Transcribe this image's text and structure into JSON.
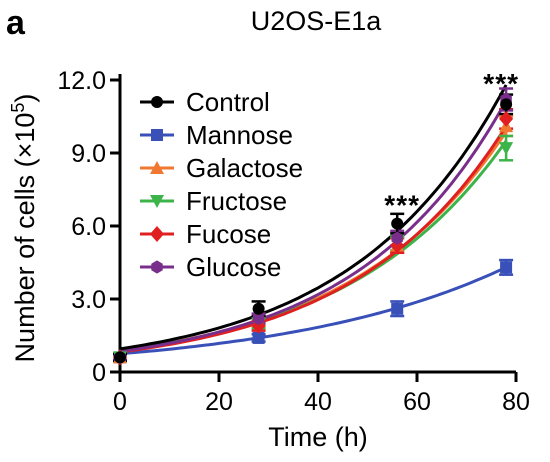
{
  "panel_label": "a",
  "chart_data": {
    "type": "line",
    "title": "U2OS-E1a",
    "xlabel": "Time (h)",
    "ylabel": "Number of cells (×10",
    "ylabel_sup": "5",
    "ylabel_close": ")",
    "xlim": [
      0,
      80
    ],
    "ylim": [
      0,
      12
    ],
    "xticks": [
      0,
      20,
      40,
      60,
      80
    ],
    "yticks": [
      0,
      3,
      6,
      9,
      12
    ],
    "xtick_labels": [
      "0",
      "20",
      "40",
      "60",
      "80"
    ],
    "ytick_labels": [
      "0",
      "3.0",
      "6.0",
      "9.0",
      "12.0"
    ],
    "grid": false,
    "legend_position": "top-left",
    "x": [
      0,
      28,
      56,
      78
    ],
    "series": [
      {
        "name": "Control",
        "color": "#000000",
        "marker": "circle",
        "values": [
          0.6,
          2.6,
          6.1,
          11.0
        ],
        "errors": [
          0.15,
          0.3,
          0.4,
          0.4
        ],
        "fit": [
          0.95,
          0.0323
        ]
      },
      {
        "name": "Mannose",
        "color": "#3850b8",
        "marker": "square",
        "values": [
          0.6,
          1.4,
          2.6,
          4.3
        ],
        "errors": [
          0.1,
          0.15,
          0.3,
          0.3
        ],
        "fit": [
          0.75,
          0.0224
        ]
      },
      {
        "name": "Galactose",
        "color": "#f07830",
        "marker": "triangle-up",
        "values": [
          0.6,
          2.1,
          5.2,
          10.1
        ],
        "errors": [
          0.1,
          0.2,
          0.3,
          0.4
        ],
        "fit": [
          0.88,
          0.031
        ]
      },
      {
        "name": "Fructose",
        "color": "#3cb44a",
        "marker": "triangle-down",
        "values": [
          0.6,
          2.0,
          5.3,
          9.2
        ],
        "errors": [
          0.1,
          0.2,
          0.3,
          0.5
        ],
        "fit": [
          0.88,
          0.0305
        ]
      },
      {
        "name": "Fucose",
        "color": "#e02020",
        "marker": "diamond",
        "values": [
          0.6,
          1.9,
          5.2,
          10.4
        ],
        "errors": [
          0.1,
          0.2,
          0.3,
          0.4
        ],
        "fit": [
          0.82,
          0.0322
        ]
      },
      {
        "name": "Glucose",
        "color": "#7a2e8c",
        "marker": "hexagon",
        "values": [
          0.6,
          2.2,
          5.5,
          11.2
        ],
        "errors": [
          0.1,
          0.2,
          0.3,
          0.45
        ],
        "fit": [
          0.85,
          0.033
        ]
      }
    ],
    "annotations": [
      {
        "text": "***",
        "x": 57,
        "y": 6.8
      },
      {
        "text": "***",
        "x": 77,
        "y": 11.8
      }
    ]
  }
}
